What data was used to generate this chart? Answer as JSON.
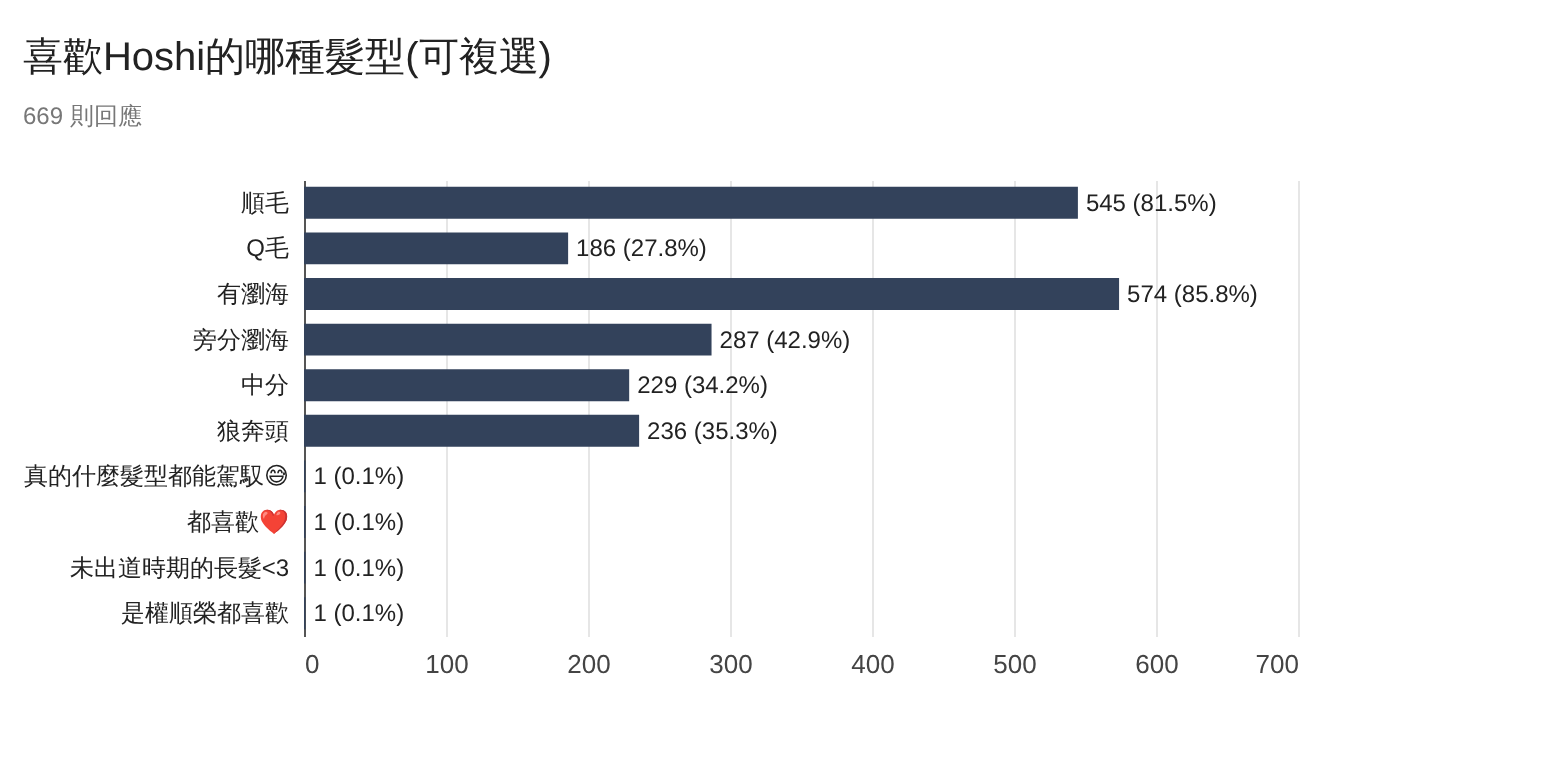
{
  "chart_data": {
    "type": "bar",
    "orientation": "horizontal",
    "title": "喜歡Hoshi的哪種髮型(可複選)",
    "subtitle": "669 則回應",
    "categories": [
      "順毛",
      "Q毛",
      "有瀏海",
      "旁分瀏海",
      "中分",
      "狼奔頭",
      "真的什麼髮型都能駕馭😅",
      "都喜歡❤️",
      "未出道時期的長髮<3",
      "是權順榮都喜歡"
    ],
    "values": [
      545,
      186,
      574,
      287,
      229,
      236,
      1,
      1,
      1,
      1
    ],
    "value_labels": [
      "545 (81.5%)",
      "186 (27.8%)",
      "574 (85.8%)",
      "287 (42.9%)",
      "229 (34.2%)",
      "236 (35.3%)",
      "1 (0.1%)",
      "1 (0.1%)",
      "1 (0.1%)",
      "1 (0.1%)"
    ],
    "color": "#33425b",
    "xlim": [
      0,
      700
    ],
    "xticks": [
      0,
      100,
      200,
      300,
      400,
      500,
      600,
      700
    ],
    "grid": "x"
  }
}
